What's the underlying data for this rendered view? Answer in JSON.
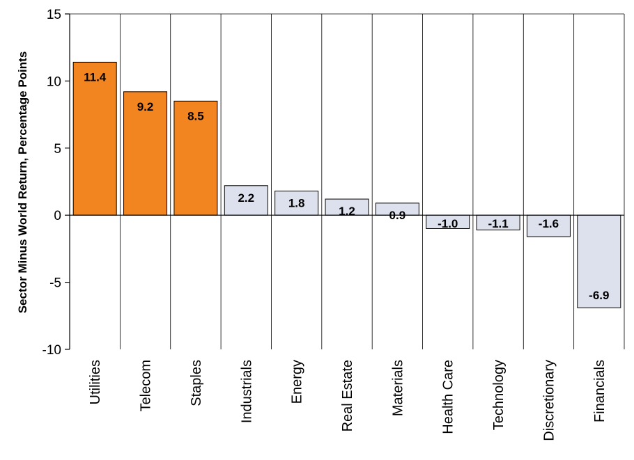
{
  "chart_data": {
    "type": "bar",
    "categories": [
      "Utilities",
      "Telecom",
      "Staples",
      "Industrials",
      "Energy",
      "Real Estate",
      "Materials",
      "Health Care",
      "Technology",
      "Discretionary",
      "Financials"
    ],
    "values": [
      11.4,
      9.2,
      8.5,
      2.2,
      1.8,
      1.2,
      0.9,
      -1.0,
      -1.1,
      -1.6,
      -6.9
    ],
    "data_labels": [
      "11.4",
      "9.2",
      "8.5",
      "2.2",
      "1.8",
      "1.2",
      "0.9",
      "-1.0",
      "-1.1",
      "-1.6",
      "-6.9"
    ],
    "highlighted_count": 3,
    "colors": {
      "highlight": "#F28520",
      "normal": "#DDE1EE",
      "border": "#000000",
      "grid": "#000000"
    },
    "title": "",
    "xlabel": "",
    "ylabel": "Sector Minus World Return, Percentage Points",
    "ylim": [
      -10,
      15
    ],
    "yticks": [
      -10,
      -5,
      0,
      5,
      10,
      15
    ],
    "ytick_labels": [
      "-10",
      "-5",
      "0",
      "5",
      "10",
      "15"
    ],
    "grid": "vertical category separators"
  }
}
